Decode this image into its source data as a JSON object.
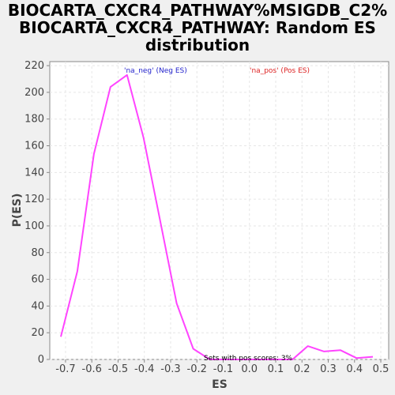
{
  "title_lines": [
    "BIOCARTA_CXCR4_PATHWAY%MSIGDB_C2%",
    "BIOCARTA_CXCR4_PATHWAY: Random ES",
    "distribution"
  ],
  "chart_data": {
    "type": "line",
    "xlabel": "ES",
    "ylabel": "P(ES)",
    "xlim": [
      -0.76,
      0.53
    ],
    "ylim": [
      0,
      223
    ],
    "x_ticks": [
      -0.7,
      -0.6,
      -0.5,
      -0.4,
      -0.3,
      -0.2,
      -0.1,
      0.0,
      0.1,
      0.2,
      0.3,
      0.4,
      0.5
    ],
    "x_tick_labels": [
      "-0.7",
      "-0.6",
      "-0.5",
      "-0.4",
      "-0.3",
      "-0.2",
      "-0.1",
      "0.0",
      "0.1",
      "0.2",
      "0.3",
      "0.4",
      "0.5"
    ],
    "y_ticks": [
      0,
      20,
      40,
      60,
      80,
      100,
      120,
      140,
      160,
      180,
      200,
      220
    ],
    "y_tick_labels": [
      "0",
      "20",
      "40",
      "60",
      "80",
      "100",
      "120",
      "140",
      "160",
      "180",
      "200",
      "220"
    ],
    "grid": true,
    "series": [
      {
        "color": "#ff44ff",
        "x": [
          -0.718,
          -0.655,
          -0.592,
          -0.529,
          -0.466,
          -0.403,
          -0.34,
          -0.277,
          -0.214,
          -0.151,
          -0.088,
          -0.025,
          0.038,
          0.101,
          0.164,
          0.222,
          0.284,
          0.346,
          0.408,
          0.47
        ],
        "y": [
          17,
          66,
          154,
          204,
          213,
          166,
          104,
          42,
          8,
          0,
          0,
          0,
          0,
          0,
          0,
          10,
          6,
          7,
          1,
          2
        ]
      }
    ],
    "annotations": [
      {
        "text": "'na_neg' (Neg ES)",
        "color": "#2222cc"
      },
      {
        "text": "'na_pos' (Pos ES)",
        "color": "#dd2222"
      },
      {
        "text": "Sets with pos scores: 3%",
        "color": "#000000"
      }
    ]
  }
}
